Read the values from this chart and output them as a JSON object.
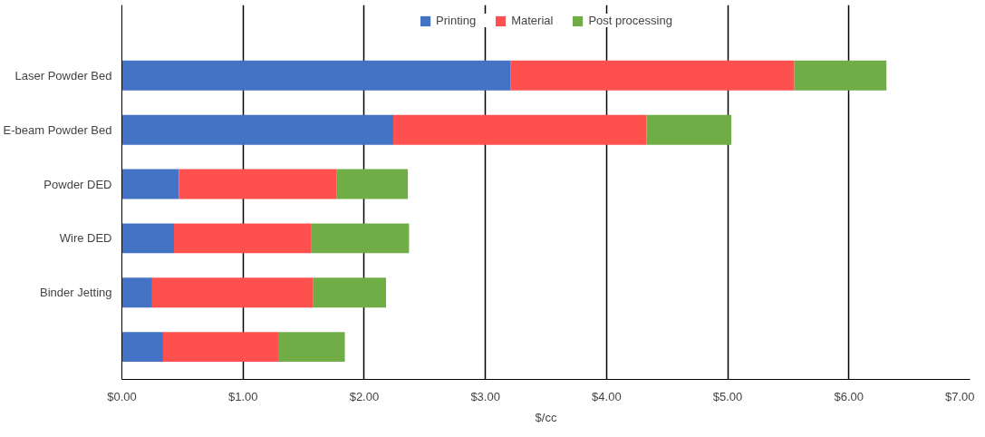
{
  "chart_data": {
    "type": "bar",
    "orientation": "horizontal",
    "stacked": true,
    "xlabel": "$/cc",
    "categories": [
      "Laser Powder Bed",
      "E-beam Powder Bed",
      "Powder DED",
      "Wire DED",
      "Binder Jetting",
      null
    ],
    "series": [
      {
        "name": "Printing",
        "color": "#4472c4",
        "values": [
          3.21,
          2.24,
          0.47,
          0.43,
          0.25,
          0.34
        ]
      },
      {
        "name": "Material",
        "color": "#ff5050",
        "values": [
          2.34,
          2.09,
          1.3,
          1.13,
          1.33,
          0.95
        ]
      },
      {
        "name": "Post processing",
        "color": "#70ad47",
        "values": [
          0.76,
          0.7,
          0.59,
          0.81,
          0.6,
          0.55
        ]
      }
    ],
    "xlim": [
      0,
      7
    ],
    "xticks": [
      {
        "value": 0,
        "label": "$0.00"
      },
      {
        "value": 1,
        "label": "$1.00"
      },
      {
        "value": 2,
        "label": "$2.00"
      },
      {
        "value": 3,
        "label": "$3.00"
      },
      {
        "value": 4,
        "label": "$4.00"
      },
      {
        "value": 5,
        "label": "$5.00"
      },
      {
        "value": 6,
        "label": "$6.00"
      },
      {
        "value": 7,
        "label": "$7.00"
      }
    ],
    "grid": "x",
    "legend": "top"
  }
}
